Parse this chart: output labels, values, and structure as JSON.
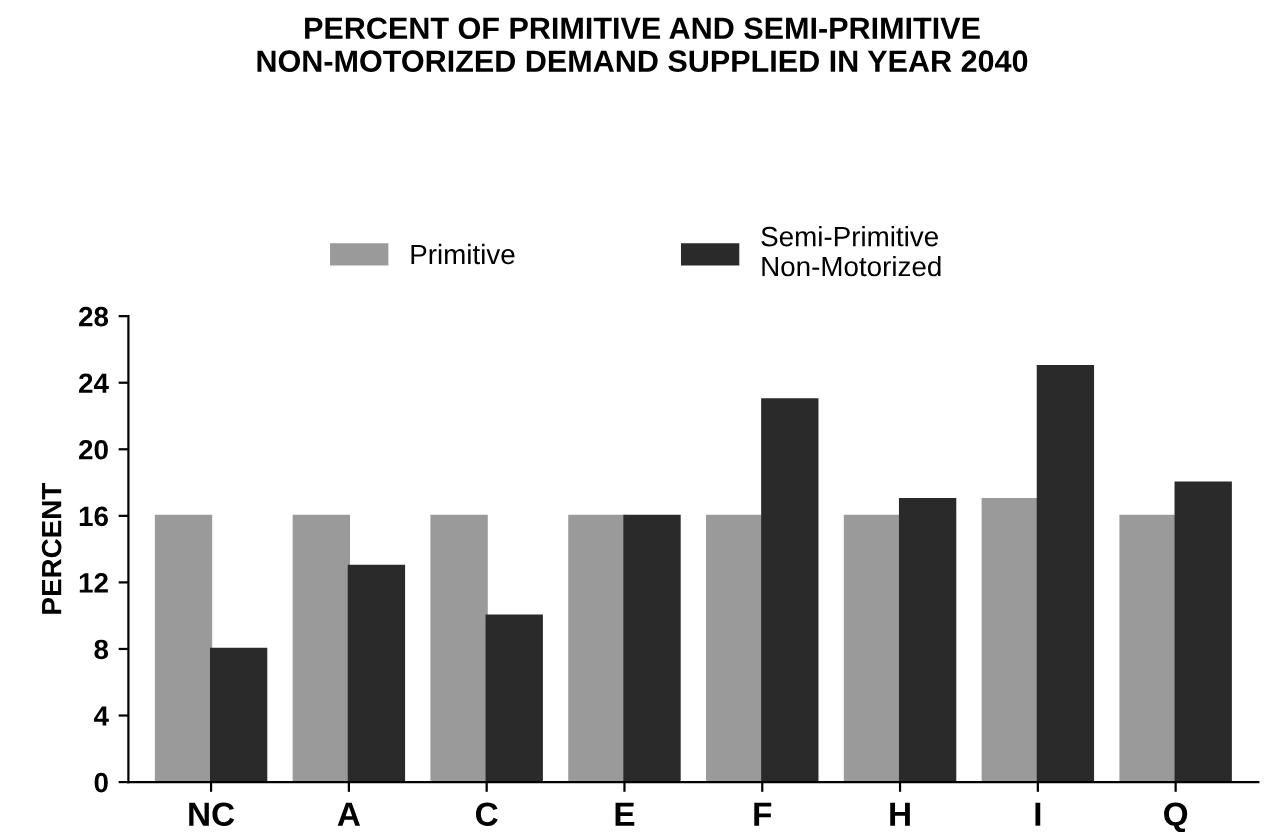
{
  "chart_data": {
    "type": "bar",
    "title": "PERCENT OF PRIMITIVE AND SEMI-PRIMITIVE\nNON-MOTORIZED DEMAND SUPPLIED IN YEAR 2040",
    "ylabel": "PERCENT",
    "categories": [
      "NC",
      "A",
      "C",
      "E",
      "F",
      "H",
      "I",
      "Q"
    ],
    "series": [
      {
        "name": "Primitive",
        "color": "#9a9a9a",
        "values": [
          16,
          16,
          16,
          16,
          16,
          16,
          17,
          16
        ]
      },
      {
        "name": "Semi-Primitive\nNon-Motorized",
        "color": "#2a2a2a",
        "values": [
          8,
          13,
          10,
          16,
          23,
          17,
          25,
          18
        ]
      }
    ],
    "ylim": [
      0,
      28
    ],
    "yticks": [
      0,
      4,
      8,
      12,
      16,
      20,
      24,
      28
    ],
    "grid": false,
    "legend": "top"
  }
}
